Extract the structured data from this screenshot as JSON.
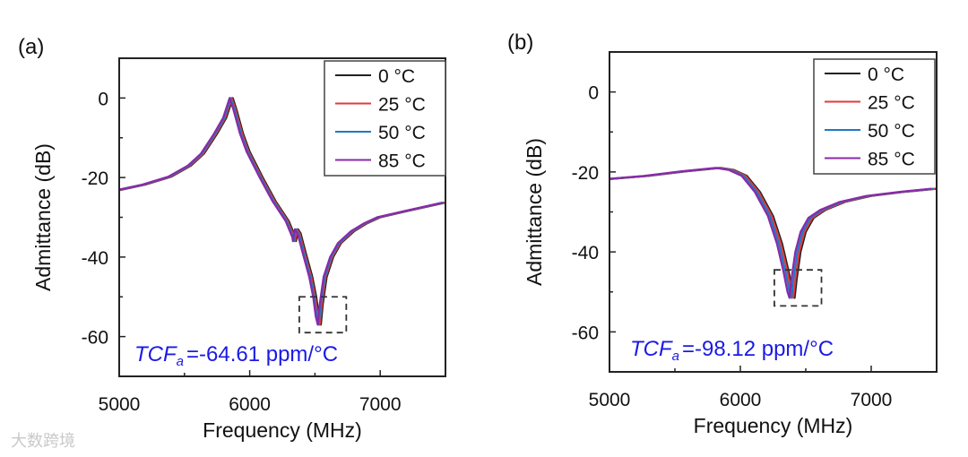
{
  "watermark": "大数跨境",
  "chart_data": [
    {
      "type": "line",
      "panel_label": "(a)",
      "xlabel": "Frequency (MHz)",
      "ylabel": "Admittance (dB)",
      "xlim": [
        5000,
        7500
      ],
      "ylim": [
        -70,
        10
      ],
      "xticks": [
        5000,
        6000,
        7000
      ],
      "xtick_labels": [
        "5000",
        "6000",
        "7000"
      ],
      "yticks": [
        0,
        -20,
        -40,
        -60
      ],
      "ytick_labels": [
        "0",
        "-20",
        "-40",
        "-60"
      ],
      "legend_position": "top-right",
      "annotation": {
        "prefix": "TCF",
        "subscript": "a",
        "text": "=-64.61 ppm/°C"
      },
      "dashed_box": {
        "x": [
          6380,
          6740
        ],
        "y": [
          -59,
          -50
        ]
      },
      "base_curve": {
        "x": [
          5000,
          5200,
          5400,
          5550,
          5650,
          5750,
          5820,
          5870,
          5900,
          5950,
          6000,
          6100,
          6200,
          6300,
          6350,
          6355,
          6370,
          6390,
          6430,
          6480,
          6510,
          6530,
          6545,
          6560,
          6590,
          6640,
          6700,
          6800,
          6900,
          7000,
          7200,
          7500
        ],
        "y": [
          -23.2,
          -21.8,
          -19.8,
          -17,
          -14,
          -9,
          -5,
          0,
          -3,
          -9,
          -13.5,
          -20,
          -26,
          -31,
          -35,
          -36,
          -33,
          -34,
          -39,
          -45,
          -50,
          -55,
          -57,
          -52,
          -45,
          -40,
          -36.5,
          -33.5,
          -31.5,
          -30,
          -28.5,
          -26.3
        ]
      },
      "series": [
        {
          "name": "0 °C",
          "color": "#222222",
          "shift_MHz": 0
        },
        {
          "name": "25 °C",
          "color": "#e23a3a",
          "shift_MHz": -8
        },
        {
          "name": "50 °C",
          "color": "#1f78c8",
          "shift_MHz": -16
        },
        {
          "name": "85 °C",
          "color": "#8a2aa8",
          "shift_MHz": -24
        }
      ]
    },
    {
      "type": "line",
      "panel_label": "(b)",
      "xlabel": "Frequency (MHz)",
      "ylabel": "Admittance (dB)",
      "xlim": [
        5000,
        7500
      ],
      "ylim": [
        -70,
        10
      ],
      "xticks": [
        5000,
        6000,
        7000
      ],
      "xtick_labels": [
        "5000",
        "6000",
        "7000"
      ],
      "yticks": [
        0,
        -20,
        -40,
        -60
      ],
      "ytick_labels": [
        "0",
        "-20",
        "-40",
        "-60"
      ],
      "legend_position": "top-right",
      "annotation": {
        "prefix": "TCF",
        "subscript": "a",
        "text": "=-98.12 ppm/°C"
      },
      "dashed_box": {
        "x": [
          6260,
          6620
        ],
        "y": [
          -53.5,
          -44.5
        ]
      },
      "base_curve": {
        "x": [
          5000,
          5300,
          5600,
          5850,
          5950,
          6050,
          6150,
          6250,
          6320,
          6370,
          6400,
          6415,
          6430,
          6460,
          6500,
          6560,
          6650,
          6800,
          7000,
          7250,
          7500
        ],
        "y": [
          -21.8,
          -21,
          -19.8,
          -19,
          -19.5,
          -21,
          -25,
          -31,
          -38,
          -45,
          -50,
          -51.5,
          -47,
          -40,
          -35,
          -31.5,
          -29.5,
          -27.5,
          -26,
          -25,
          -24.2
        ]
      },
      "series": [
        {
          "name": "0 °C",
          "color": "#222222",
          "shift_MHz": 0
        },
        {
          "name": "25 °C",
          "color": "#e23a3a",
          "shift_MHz": -10
        },
        {
          "name": "50 °C",
          "color": "#1f78c8",
          "shift_MHz": -25
        },
        {
          "name": "85 °C",
          "color": "#8a2aa8",
          "shift_MHz": -40
        }
      ]
    }
  ]
}
